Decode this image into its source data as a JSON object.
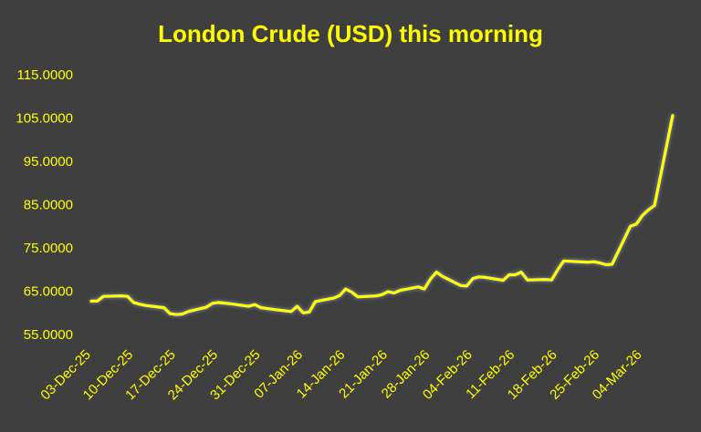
{
  "chart_data": {
    "type": "line",
    "title": "London Crude (USD) this morning",
    "xlabel": "",
    "ylabel": "",
    "ylim": [
      55,
      115
    ],
    "yticks": [
      "55.0000",
      "65.0000",
      "75.0000",
      "85.0000",
      "95.0000",
      "105.0000",
      "115.0000"
    ],
    "xticks": [
      "03-Dec-25",
      "10-Dec-25",
      "17-Dec-25",
      "24-Dec-25",
      "31-Dec-25",
      "07-Jan-26",
      "14-Jan-26",
      "21-Jan-26",
      "28-Jan-26",
      "04-Feb-26",
      "11-Feb-26",
      "18-Feb-26",
      "25-Feb-26",
      "04-Mar-26"
    ],
    "grid": false,
    "legend": "none",
    "colors": {
      "background": "#3f3f3f",
      "line": "#ffff00",
      "text": "#ffff00"
    },
    "series": [
      {
        "x": [
          "03-Dec-25",
          "04-Dec-25",
          "05-Dec-25",
          "08-Dec-25",
          "09-Dec-25",
          "10-Dec-25",
          "11-Dec-25",
          "12-Dec-25",
          "15-Dec-25",
          "16-Dec-25",
          "17-Dec-25",
          "18-Dec-25",
          "19-Dec-25",
          "22-Dec-25",
          "23-Dec-25",
          "24-Dec-25",
          "26-Dec-25",
          "29-Dec-25",
          "30-Dec-25",
          "31-Dec-25",
          "02-Jan-26",
          "05-Jan-26",
          "06-Jan-26",
          "07-Jan-26",
          "08-Jan-26",
          "09-Jan-26",
          "12-Jan-26",
          "13-Jan-26",
          "14-Jan-26",
          "15-Jan-26",
          "16-Jan-26",
          "19-Jan-26",
          "20-Jan-26",
          "21-Jan-26",
          "22-Jan-26",
          "23-Jan-26",
          "26-Jan-26",
          "27-Jan-26",
          "28-Jan-26",
          "29-Jan-26",
          "30-Jan-26",
          "02-Feb-26",
          "03-Feb-26",
          "04-Feb-26",
          "05-Feb-26",
          "06-Feb-26",
          "09-Feb-26",
          "10-Feb-26",
          "11-Feb-26",
          "12-Feb-26",
          "13-Feb-26",
          "16-Feb-26",
          "17-Feb-26",
          "18-Feb-26",
          "19-Feb-26",
          "20-Feb-26",
          "23-Feb-26",
          "24-Feb-26",
          "25-Feb-26",
          "26-Feb-26",
          "27-Feb-26",
          "02-Mar-26",
          "03-Mar-26",
          "04-Mar-26",
          "05-Mar-26",
          "06-Mar-26",
          "09-Mar-26"
        ],
        "values": [
          62.7,
          62.7,
          63.8,
          63.9,
          63.8,
          62.4,
          62.0,
          61.7,
          61.2,
          59.8,
          59.6,
          59.7,
          60.3,
          61.3,
          62.2,
          62.4,
          62.1,
          61.5,
          61.9,
          61.2,
          60.8,
          60.3,
          61.5,
          60.0,
          60.2,
          62.6,
          63.4,
          64.0,
          65.5,
          64.8,
          63.7,
          63.9,
          64.2,
          64.9,
          64.6,
          65.2,
          66.0,
          65.5,
          67.8,
          69.4,
          68.4,
          66.3,
          66.2,
          67.9,
          68.3,
          68.2,
          67.5,
          68.8,
          68.8,
          69.4,
          67.6,
          67.7,
          67.6,
          69.9,
          72.0,
          71.9,
          71.7,
          71.8,
          71.5,
          71.1,
          71.2,
          80.0,
          80.5,
          82.5,
          83.8,
          84.8,
          105.6
        ]
      }
    ]
  }
}
